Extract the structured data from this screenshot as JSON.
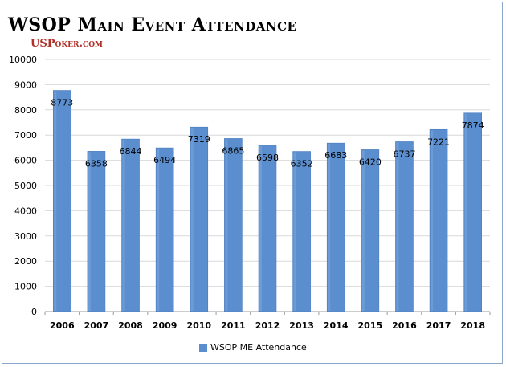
{
  "chart_data": {
    "type": "bar",
    "title": "WSOP Main Event Attendance",
    "subtitle": "USPoker.com",
    "categories": [
      "2006",
      "2007",
      "2008",
      "2009",
      "2010",
      "2011",
      "2012",
      "2013",
      "2014",
      "2015",
      "2016",
      "2017",
      "2018"
    ],
    "series": [
      {
        "name": "WSOP ME Attendance",
        "values": [
          8773,
          6358,
          6844,
          6494,
          7319,
          6865,
          6598,
          6352,
          6683,
          6420,
          6737,
          7221,
          7874
        ]
      }
    ],
    "ylim": [
      0,
      10000
    ],
    "yticks": [
      0,
      1000,
      2000,
      3000,
      4000,
      5000,
      6000,
      7000,
      8000,
      9000,
      10000
    ],
    "grid": true,
    "legend": "bottom",
    "bar_color": "#5b8ecf"
  }
}
